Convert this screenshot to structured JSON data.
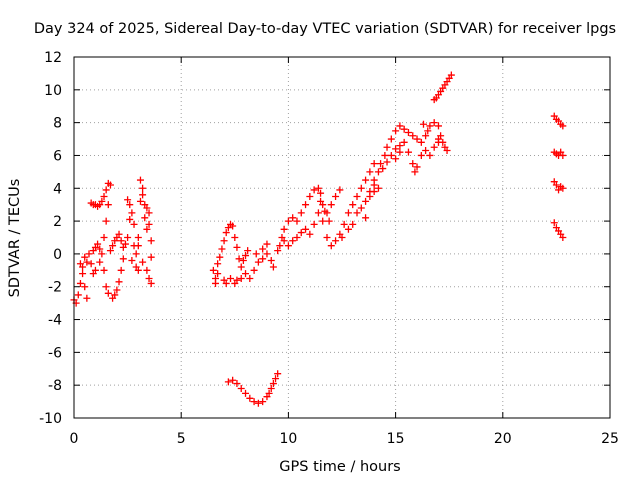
{
  "chart_data": {
    "type": "scatter",
    "title": "Day 324 of 2025, Sidereal Day-to-day VTEC variation (SDTVAR) for receiver lpgs",
    "xlabel": "GPS time / hours",
    "ylabel": "SDTVAR / TECUs",
    "xlim": [
      0,
      25
    ],
    "ylim": [
      -10,
      12
    ],
    "xticks": [
      "0",
      "5",
      "10",
      "15",
      "20",
      "25"
    ],
    "yticks": [
      "-10",
      "-8",
      "-6",
      "-4",
      "-2",
      "0",
      "2",
      "4",
      "6",
      "8",
      "10",
      "12"
    ],
    "grid": true,
    "marker": "plus",
    "color": "#ff0000",
    "series": [
      {
        "points": [
          [
            0.0,
            -2.8
          ],
          [
            0.1,
            -3.0
          ],
          [
            0.2,
            -2.5
          ],
          [
            0.3,
            -1.8
          ],
          [
            0.4,
            -1.2
          ],
          [
            0.5,
            -2.0
          ],
          [
            0.6,
            -2.7
          ],
          [
            0.4,
            -0.8
          ],
          [
            0.5,
            -0.2
          ],
          [
            0.6,
            -0.5
          ],
          [
            0.7,
            0.0
          ],
          [
            0.8,
            -0.6
          ],
          [
            0.9,
            0.2
          ],
          [
            1.0,
            0.4
          ],
          [
            1.1,
            0.6
          ],
          [
            1.2,
            0.3
          ],
          [
            0.9,
            -1.2
          ],
          [
            1.0,
            -1.0
          ],
          [
            1.2,
            -0.5
          ],
          [
            0.3,
            -0.6
          ],
          [
            0.8,
            3.1
          ],
          [
            0.9,
            3.0
          ],
          [
            1.0,
            3.0
          ],
          [
            1.1,
            2.9
          ],
          [
            1.2,
            3.0
          ],
          [
            1.3,
            3.2
          ],
          [
            1.4,
            3.5
          ],
          [
            1.5,
            3.9
          ],
          [
            1.6,
            4.3
          ],
          [
            1.7,
            4.2
          ],
          [
            1.6,
            3.0
          ],
          [
            1.5,
            2.0
          ],
          [
            1.4,
            1.0
          ],
          [
            1.3,
            0.0
          ],
          [
            1.4,
            -1.0
          ],
          [
            1.5,
            -2.0
          ],
          [
            1.6,
            -2.4
          ],
          [
            1.8,
            -2.7
          ],
          [
            1.9,
            -2.5
          ],
          [
            2.0,
            -2.2
          ],
          [
            2.1,
            -1.7
          ],
          [
            2.2,
            -1.0
          ],
          [
            2.3,
            -0.3
          ],
          [
            1.7,
            0.2
          ],
          [
            1.8,
            0.5
          ],
          [
            1.9,
            0.8
          ],
          [
            2.0,
            1.0
          ],
          [
            2.1,
            1.2
          ],
          [
            2.2,
            0.8
          ],
          [
            2.3,
            0.4
          ],
          [
            2.4,
            0.6
          ],
          [
            2.5,
            1.0
          ],
          [
            2.5,
            3.3
          ],
          [
            2.6,
            3.0
          ],
          [
            2.6,
            2.1
          ],
          [
            2.7,
            2.5
          ],
          [
            2.8,
            1.8
          ],
          [
            2.8,
            0.5
          ],
          [
            2.9,
            0.0
          ],
          [
            2.9,
            -0.8
          ],
          [
            3.0,
            -1.0
          ],
          [
            3.0,
            0.5
          ],
          [
            3.1,
            3.2
          ],
          [
            3.1,
            4.5
          ],
          [
            3.2,
            4.0
          ],
          [
            3.2,
            3.6
          ],
          [
            3.3,
            3.0
          ],
          [
            3.3,
            2.2
          ],
          [
            3.4,
            1.5
          ],
          [
            3.4,
            2.8
          ],
          [
            3.5,
            2.5
          ],
          [
            3.5,
            1.8
          ],
          [
            3.6,
            0.8
          ],
          [
            3.6,
            -0.2
          ],
          [
            3.4,
            -1.0
          ],
          [
            3.5,
            -1.5
          ],
          [
            3.6,
            -1.8
          ],
          [
            3.2,
            -0.5
          ],
          [
            2.7,
            -0.4
          ],
          [
            3.0,
            1.0
          ]
        ]
      },
      {
        "points": [
          [
            6.5,
            -1.0
          ],
          [
            6.6,
            -1.5
          ],
          [
            6.6,
            -1.8
          ],
          [
            6.7,
            -1.2
          ],
          [
            6.7,
            -0.6
          ],
          [
            6.8,
            -0.2
          ],
          [
            6.9,
            0.3
          ],
          [
            7.0,
            0.8
          ],
          [
            7.1,
            1.3
          ],
          [
            7.2,
            1.6
          ],
          [
            7.3,
            1.8
          ],
          [
            7.4,
            1.7
          ],
          [
            7.5,
            1.0
          ],
          [
            7.6,
            0.4
          ],
          [
            7.7,
            -0.3
          ],
          [
            7.8,
            -0.8
          ],
          [
            7.9,
            -0.4
          ],
          [
            8.0,
            -0.1
          ],
          [
            8.1,
            0.2
          ],
          [
            7.0,
            -1.6
          ],
          [
            7.1,
            -1.8
          ],
          [
            7.3,
            -1.5
          ],
          [
            7.5,
            -1.8
          ],
          [
            7.6,
            -1.6
          ],
          [
            7.8,
            -1.5
          ],
          [
            8.0,
            -1.2
          ],
          [
            8.2,
            -1.5
          ],
          [
            8.4,
            -1.0
          ],
          [
            8.6,
            -0.5
          ],
          [
            8.8,
            -0.3
          ],
          [
            9.0,
            0.0
          ],
          [
            9.2,
            -0.4
          ],
          [
            9.3,
            -0.8
          ],
          [
            9.5,
            0.2
          ],
          [
            9.6,
            0.5
          ],
          [
            9.7,
            1.0
          ],
          [
            9.8,
            0.8
          ],
          [
            8.5,
            0.0
          ],
          [
            8.8,
            0.3
          ],
          [
            9.0,
            0.6
          ]
        ]
      },
      {
        "points": [
          [
            7.2,
            -7.8
          ],
          [
            7.4,
            -7.7
          ],
          [
            7.6,
            -7.9
          ],
          [
            7.8,
            -8.2
          ],
          [
            8.0,
            -8.5
          ],
          [
            8.2,
            -8.8
          ],
          [
            8.4,
            -9.0
          ],
          [
            8.6,
            -9.1
          ],
          [
            8.8,
            -9.0
          ],
          [
            9.0,
            -8.7
          ],
          [
            9.1,
            -8.5
          ],
          [
            9.2,
            -8.2
          ],
          [
            9.3,
            -7.9
          ],
          [
            9.4,
            -7.6
          ],
          [
            9.5,
            -7.3
          ]
        ]
      },
      {
        "points": [
          [
            9.8,
            1.5
          ],
          [
            10.0,
            2.0
          ],
          [
            10.2,
            2.2
          ],
          [
            10.4,
            2.0
          ],
          [
            10.6,
            2.5
          ],
          [
            10.8,
            3.0
          ],
          [
            11.0,
            3.5
          ],
          [
            11.2,
            3.9
          ],
          [
            11.4,
            4.0
          ],
          [
            11.5,
            3.7
          ],
          [
            11.6,
            3.0
          ],
          [
            11.8,
            2.5
          ],
          [
            11.9,
            2.0
          ],
          [
            10.0,
            0.5
          ],
          [
            10.2,
            0.8
          ],
          [
            10.4,
            1.0
          ],
          [
            10.6,
            1.3
          ],
          [
            10.8,
            1.5
          ],
          [
            11.0,
            1.2
          ],
          [
            11.2,
            1.8
          ],
          [
            11.4,
            2.5
          ],
          [
            11.6,
            2.0
          ],
          [
            11.8,
            1.0
          ],
          [
            12.0,
            0.5
          ],
          [
            12.2,
            0.8
          ],
          [
            12.4,
            1.2
          ],
          [
            12.6,
            1.8
          ],
          [
            12.8,
            2.5
          ],
          [
            13.0,
            3.0
          ],
          [
            13.2,
            3.5
          ],
          [
            13.4,
            4.0
          ],
          [
            13.6,
            4.5
          ],
          [
            13.8,
            5.0
          ],
          [
            14.0,
            5.5
          ],
          [
            13.2,
            2.5
          ],
          [
            13.4,
            2.8
          ],
          [
            13.6,
            3.2
          ],
          [
            13.8,
            3.8
          ],
          [
            14.0,
            4.2
          ],
          [
            12.5,
            1.0
          ],
          [
            12.8,
            1.5
          ],
          [
            13.0,
            1.8
          ],
          [
            11.5,
            3.2
          ],
          [
            11.7,
            2.6
          ],
          [
            12.0,
            3.0
          ],
          [
            12.2,
            3.5
          ],
          [
            12.4,
            3.9
          ]
        ]
      },
      {
        "points": [
          [
            13.6,
            2.2
          ],
          [
            13.8,
            3.5
          ],
          [
            14.0,
            4.5
          ],
          [
            14.2,
            5.0
          ],
          [
            14.3,
            5.5
          ],
          [
            14.5,
            6.0
          ],
          [
            14.6,
            6.5
          ],
          [
            14.8,
            7.0
          ],
          [
            15.0,
            7.5
          ],
          [
            15.2,
            7.8
          ],
          [
            15.4,
            7.6
          ],
          [
            15.6,
            7.4
          ],
          [
            15.8,
            7.2
          ],
          [
            16.0,
            7.0
          ],
          [
            16.2,
            6.8
          ],
          [
            16.4,
            7.2
          ],
          [
            16.6,
            7.8
          ],
          [
            16.8,
            8.0
          ],
          [
            17.0,
            7.8
          ],
          [
            17.1,
            7.2
          ],
          [
            17.2,
            6.8
          ],
          [
            17.3,
            6.5
          ],
          [
            17.4,
            6.3
          ],
          [
            14.4,
            5.2
          ],
          [
            14.6,
            5.6
          ],
          [
            14.8,
            6.0
          ],
          [
            15.0,
            6.4
          ],
          [
            15.2,
            6.6
          ],
          [
            15.4,
            6.8
          ],
          [
            15.6,
            6.2
          ],
          [
            15.8,
            5.5
          ],
          [
            15.9,
            5.0
          ],
          [
            16.0,
            5.3
          ],
          [
            16.2,
            6.0
          ],
          [
            16.4,
            6.3
          ],
          [
            16.6,
            6.0
          ],
          [
            16.8,
            6.5
          ],
          [
            17.0,
            6.8
          ],
          [
            16.5,
            7.5
          ],
          [
            17.0,
            7.0
          ],
          [
            15.0,
            5.8
          ],
          [
            15.2,
            6.2
          ],
          [
            14.2,
            4.0
          ],
          [
            14.0,
            3.8
          ],
          [
            16.3,
            7.9
          ]
        ]
      },
      {
        "points": [
          [
            16.8,
            9.4
          ],
          [
            16.9,
            9.5
          ],
          [
            17.0,
            9.7
          ],
          [
            17.1,
            9.9
          ],
          [
            17.2,
            10.1
          ],
          [
            17.3,
            10.3
          ],
          [
            17.4,
            10.5
          ],
          [
            17.5,
            10.7
          ],
          [
            17.6,
            10.9
          ]
        ]
      },
      {
        "points": [
          [
            22.4,
            8.4
          ],
          [
            22.5,
            8.2
          ],
          [
            22.6,
            8.1
          ],
          [
            22.7,
            7.9
          ],
          [
            22.8,
            7.8
          ],
          [
            22.4,
            6.2
          ],
          [
            22.5,
            6.1
          ],
          [
            22.6,
            6.0
          ],
          [
            22.7,
            6.2
          ],
          [
            22.8,
            6.0
          ],
          [
            22.4,
            4.4
          ],
          [
            22.5,
            4.2
          ],
          [
            22.6,
            3.9
          ],
          [
            22.7,
            4.1
          ],
          [
            22.8,
            4.0
          ],
          [
            22.4,
            1.9
          ],
          [
            22.5,
            1.6
          ],
          [
            22.6,
            1.4
          ],
          [
            22.7,
            1.2
          ],
          [
            22.8,
            1.0
          ]
        ]
      }
    ]
  }
}
